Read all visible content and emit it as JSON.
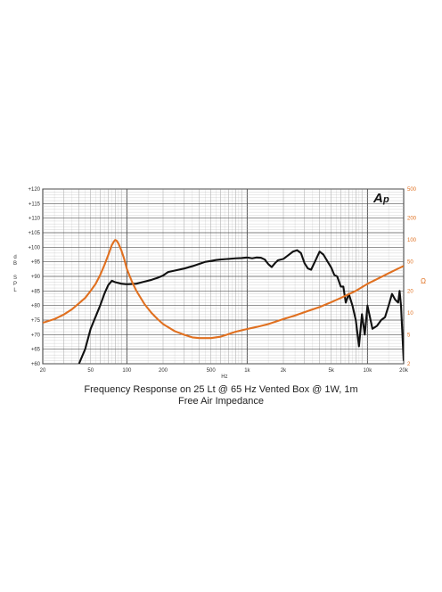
{
  "captions": {
    "line1": "Frequency Response on 25 Lt @ 65 Hz Vented Box @ 1W, 1m",
    "line2": "Free Air Impedance"
  },
  "logo": {
    "text": "AP"
  },
  "chart_data": {
    "type": "line",
    "xscale": "log",
    "xlim": [
      20,
      20000
    ],
    "ylim_left": [
      60,
      120
    ],
    "ylim_right": [
      2,
      500
    ],
    "yscale_right": "log",
    "grid": true,
    "ylabel_left": [
      "d",
      "B",
      "S",
      "P",
      "L"
    ],
    "ylabel_right": "Ω",
    "xlabel": "Hz",
    "x_ticks": [
      {
        "value": 20,
        "label": "20"
      },
      {
        "value": 50,
        "label": "50"
      },
      {
        "value": 100,
        "label": "100"
      },
      {
        "value": 200,
        "label": "200"
      },
      {
        "value": 500,
        "label": "500"
      },
      {
        "value": 1000,
        "label": "1k"
      },
      {
        "value": 2000,
        "label": "2k"
      },
      {
        "value": 5000,
        "label": "5k"
      },
      {
        "value": 10000,
        "label": "10k"
      },
      {
        "value": 20000,
        "label": "20k"
      }
    ],
    "y_ticks_left": [
      {
        "value": 120,
        "label": "+120"
      },
      {
        "value": 115,
        "label": "+115"
      },
      {
        "value": 110,
        "label": "+110"
      },
      {
        "value": 105,
        "label": "+105"
      },
      {
        "value": 100,
        "label": "+100"
      },
      {
        "value": 95,
        "label": "+95"
      },
      {
        "value": 90,
        "label": "+90"
      },
      {
        "value": 85,
        "label": "+85"
      },
      {
        "value": 80,
        "label": "+80"
      },
      {
        "value": 75,
        "label": "+75"
      },
      {
        "value": 70,
        "label": "+70"
      },
      {
        "value": 65,
        "label": "+65"
      },
      {
        "value": 60,
        "label": "+60"
      }
    ],
    "y_ticks_right": [
      {
        "value": 500,
        "label": "500"
      },
      {
        "value": 200,
        "label": "200"
      },
      {
        "value": 100,
        "label": "100"
      },
      {
        "value": 50,
        "label": "50"
      },
      {
        "value": 20,
        "label": "20"
      },
      {
        "value": 10,
        "label": "10"
      },
      {
        "value": 5,
        "label": "5"
      },
      {
        "value": 2,
        "label": "2"
      }
    ],
    "series": [
      {
        "color": "#111111",
        "axis": "left",
        "points": [
          [
            40,
            60
          ],
          [
            45,
            65
          ],
          [
            50,
            72
          ],
          [
            60,
            80
          ],
          [
            65,
            84
          ],
          [
            70,
            87
          ],
          [
            75,
            88.5
          ],
          [
            80,
            88
          ],
          [
            90,
            87.5
          ],
          [
            100,
            87.3
          ],
          [
            120,
            87.5
          ],
          [
            140,
            88.2
          ],
          [
            160,
            88.8
          ],
          [
            180,
            89.5
          ],
          [
            200,
            90.3
          ],
          [
            220,
            91.5
          ],
          [
            250,
            92
          ],
          [
            300,
            92.7
          ],
          [
            350,
            93.5
          ],
          [
            400,
            94.3
          ],
          [
            450,
            95
          ],
          [
            500,
            95.3
          ],
          [
            550,
            95.6
          ],
          [
            600,
            95.8
          ],
          [
            700,
            96
          ],
          [
            800,
            96.2
          ],
          [
            900,
            96.3
          ],
          [
            1000,
            96.5
          ],
          [
            1100,
            96.2
          ],
          [
            1200,
            96.5
          ],
          [
            1300,
            96.4
          ],
          [
            1400,
            95.8
          ],
          [
            1500,
            94.2
          ],
          [
            1600,
            93.2
          ],
          [
            1700,
            94.5
          ],
          [
            1800,
            95.5
          ],
          [
            2000,
            96
          ],
          [
            2200,
            97.3
          ],
          [
            2400,
            98.5
          ],
          [
            2600,
            99
          ],
          [
            2800,
            98
          ],
          [
            3000,
            94.5
          ],
          [
            3200,
            92.7
          ],
          [
            3400,
            92.3
          ],
          [
            3700,
            95.5
          ],
          [
            4000,
            98.5
          ],
          [
            4300,
            97.5
          ],
          [
            4600,
            95.5
          ],
          [
            5000,
            93
          ],
          [
            5300,
            90.5
          ],
          [
            5600,
            90
          ],
          [
            6000,
            86.5
          ],
          [
            6300,
            86.5
          ],
          [
            6600,
            81
          ],
          [
            7000,
            84
          ],
          [
            7500,
            80
          ],
          [
            8000,
            75
          ],
          [
            8500,
            66
          ],
          [
            9000,
            77
          ],
          [
            9500,
            70
          ],
          [
            10000,
            80
          ],
          [
            11000,
            72
          ],
          [
            12000,
            73
          ],
          [
            13000,
            75
          ],
          [
            14000,
            76
          ],
          [
            15000,
            80
          ],
          [
            16000,
            84
          ],
          [
            17000,
            82
          ],
          [
            18000,
            81
          ],
          [
            18500,
            85
          ],
          [
            19000,
            80
          ],
          [
            20000,
            61
          ]
        ]
      },
      {
        "color": "#e07020",
        "axis": "right",
        "points": [
          [
            20,
            7.3
          ],
          [
            25,
            8.2
          ],
          [
            30,
            9.5
          ],
          [
            35,
            11.2
          ],
          [
            40,
            13.5
          ],
          [
            45,
            16
          ],
          [
            50,
            20
          ],
          [
            55,
            25
          ],
          [
            60,
            33
          ],
          [
            65,
            45
          ],
          [
            70,
            62
          ],
          [
            75,
            85
          ],
          [
            78,
            95
          ],
          [
            80,
            100
          ],
          [
            82,
            98
          ],
          [
            85,
            90
          ],
          [
            90,
            72
          ],
          [
            95,
            55
          ],
          [
            100,
            40
          ],
          [
            110,
            27
          ],
          [
            120,
            20
          ],
          [
            140,
            13.2
          ],
          [
            160,
            10
          ],
          [
            180,
            8.2
          ],
          [
            200,
            7
          ],
          [
            250,
            5.6
          ],
          [
            300,
            5
          ],
          [
            350,
            4.6
          ],
          [
            400,
            4.5
          ],
          [
            500,
            4.5
          ],
          [
            600,
            4.7
          ],
          [
            700,
            5.1
          ],
          [
            800,
            5.5
          ],
          [
            1000,
            6
          ],
          [
            1200,
            6.4
          ],
          [
            1500,
            7
          ],
          [
            2000,
            8.2
          ],
          [
            2500,
            9.2
          ],
          [
            3000,
            10.2
          ],
          [
            4000,
            12
          ],
          [
            5000,
            14
          ],
          [
            6000,
            16
          ],
          [
            8000,
            20
          ],
          [
            10000,
            25
          ],
          [
            12000,
            29
          ],
          [
            15000,
            35
          ],
          [
            20000,
            44
          ]
        ]
      }
    ]
  }
}
